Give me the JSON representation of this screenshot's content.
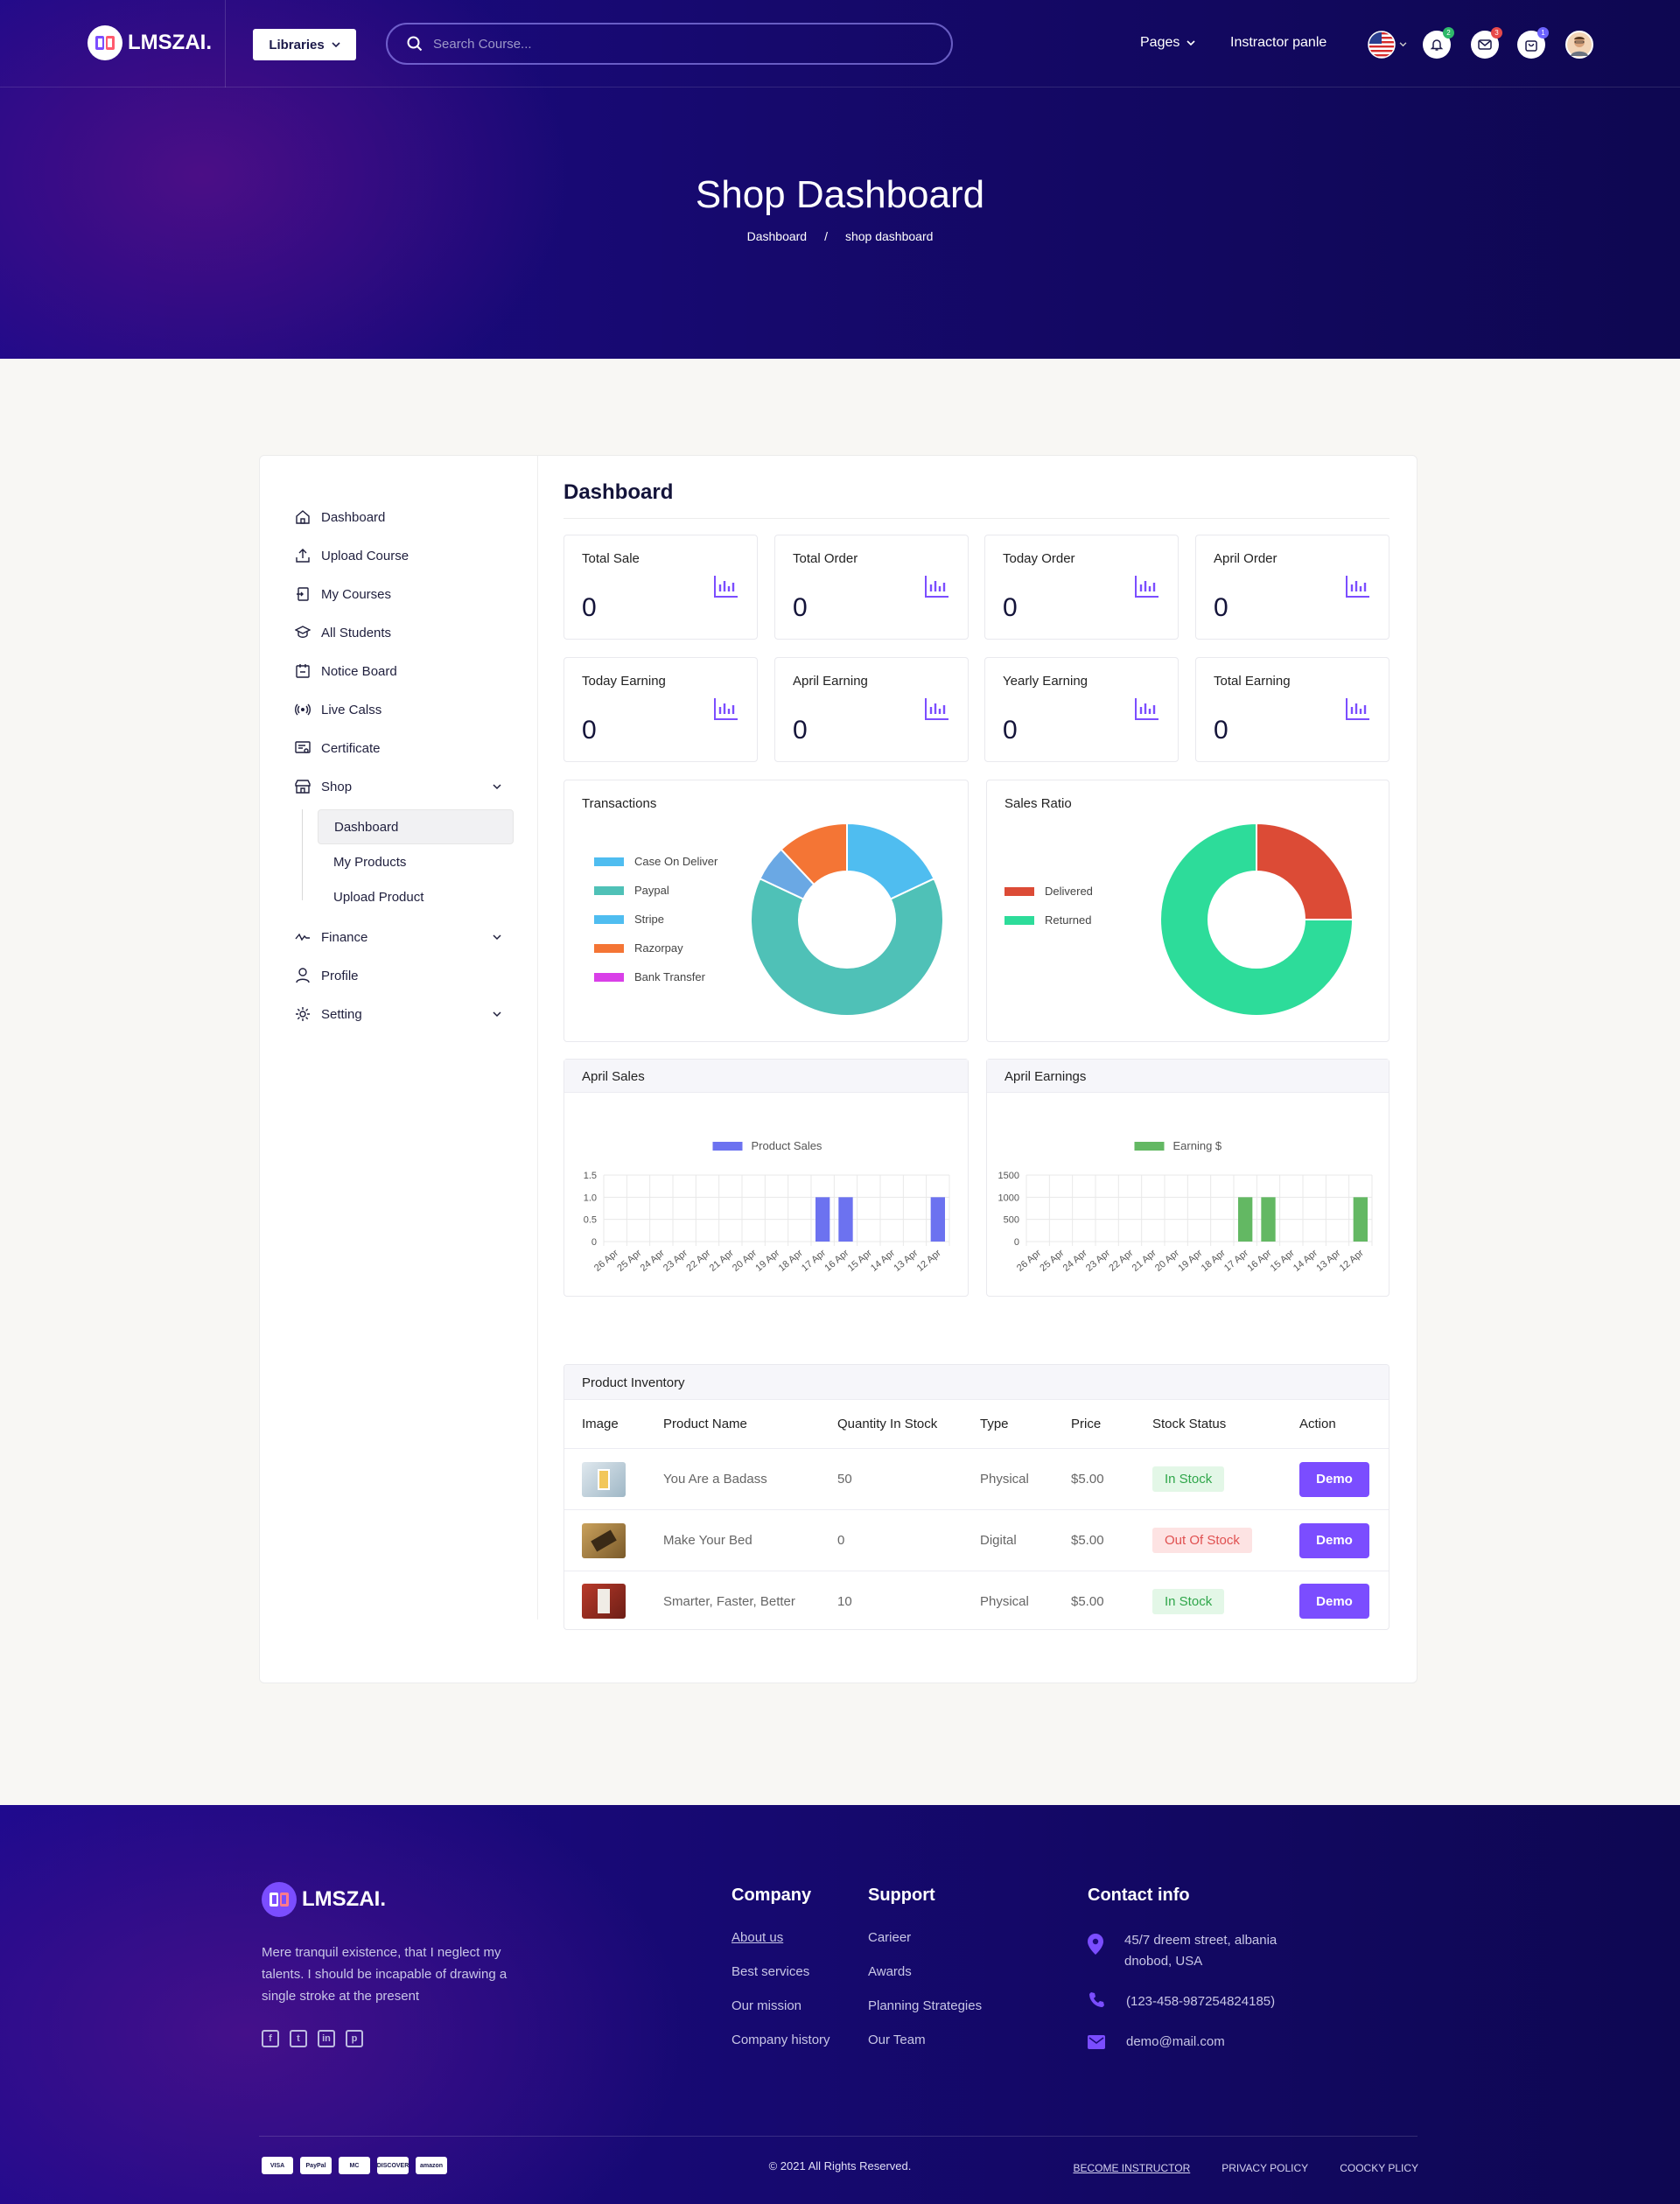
{
  "nav": {
    "logo_text": "LMSZAI.",
    "libraries_label": "Libraries",
    "search_placeholder": "Search Course...",
    "pages_label": "Pages",
    "instructor_label": "Instractor panle",
    "badges": {
      "notifications": "2",
      "messages": "3",
      "cart": "1"
    }
  },
  "hero": {
    "title": "Shop Dashboard",
    "breadcrumb": [
      "Dashboard",
      "/",
      "shop dashboard"
    ]
  },
  "sidebar": {
    "items": [
      {
        "label": "Dashboard",
        "icon": "home-icon"
      },
      {
        "label": "Upload Course",
        "icon": "upload-icon"
      },
      {
        "label": "My Courses",
        "icon": "courses-icon"
      },
      {
        "label": "All Students",
        "icon": "students-icon"
      },
      {
        "label": "Notice Board",
        "icon": "notice-icon"
      },
      {
        "label": "Live Calss",
        "icon": "live-icon"
      },
      {
        "label": "Certificate",
        "icon": "certificate-icon"
      },
      {
        "label": "Shop",
        "icon": "shop-icon"
      },
      {
        "label": "Finance",
        "icon": "finance-icon"
      },
      {
        "label": "Profile",
        "icon": "profile-icon"
      },
      {
        "label": "Setting",
        "icon": "setting-icon"
      }
    ],
    "shop_sub": [
      "Dashboard",
      "My Products",
      "Upload Product"
    ]
  },
  "dashboard": {
    "title": "Dashboard",
    "stats": [
      {
        "label": "Total Sale",
        "value": "0"
      },
      {
        "label": "Total Order",
        "value": "0"
      },
      {
        "label": "Today Order",
        "value": "0"
      },
      {
        "label": "April Order",
        "value": "0"
      },
      {
        "label": "Today Earning",
        "value": "0"
      },
      {
        "label": "April Earning",
        "value": "0"
      },
      {
        "label": "Yearly Earning",
        "value": "0"
      },
      {
        "label": "Total Earning",
        "value": "0"
      }
    ]
  },
  "chart_data": [
    {
      "type": "pie",
      "title": "Transactions",
      "donut": true,
      "legend": "left",
      "labels": [
        "Case On Deliver",
        "Paypal",
        "Stripe",
        "Razorpay",
        "Bank Transfer"
      ],
      "values": [
        18,
        64,
        6,
        12,
        0
      ],
      "colors": [
        "#4fbdf0",
        "#4fc1b7",
        "#6aa8e4",
        "#f47535",
        "#d93fe8"
      ]
    },
    {
      "type": "pie",
      "title": "Sales Ratio",
      "donut": true,
      "legend": "left",
      "labels": [
        "Delivered",
        "Returned"
      ],
      "values": [
        25,
        75
      ],
      "colors": [
        "#dc4b36",
        "#2ddc9a"
      ]
    },
    {
      "type": "bar",
      "title": "April Sales",
      "categories": [
        "26 Apr",
        "25 Apr",
        "24 Apr",
        "23 Apr",
        "22 Apr",
        "21 Apr",
        "20 Apr",
        "19 Apr",
        "18 Apr",
        "17 Apr",
        "16 Apr",
        "15 Apr",
        "14 Apr",
        "13 Apr",
        "12 Apr"
      ],
      "series": [
        {
          "name": "Product Sales",
          "values": [
            0,
            0,
            0,
            0,
            0,
            0,
            0,
            0,
            0,
            1,
            1,
            0,
            0,
            0,
            1
          ],
          "color": "#6c72f0"
        }
      ],
      "yticks": [
        "0",
        "0.5",
        "1.0",
        "1.5"
      ],
      "ylim": [
        0,
        1.5
      ],
      "legend": "top",
      "grid": true
    },
    {
      "type": "bar",
      "title": "April Earnings",
      "categories": [
        "26 Apr",
        "25 Apr",
        "24 Apr",
        "23 Apr",
        "22 Apr",
        "21 Apr",
        "20 Apr",
        "19 Apr",
        "18 Apr",
        "17 Apr",
        "16 Apr",
        "15 Apr",
        "14 Apr",
        "13 Apr",
        "12 Apr"
      ],
      "series": [
        {
          "name": "Earning $",
          "values": [
            0,
            0,
            0,
            0,
            0,
            0,
            0,
            0,
            0,
            1000,
            1000,
            0,
            0,
            0,
            1000
          ],
          "color": "#63b863"
        }
      ],
      "yticks": [
        "0",
        "500",
        "1000",
        "1500"
      ],
      "ylim": [
        0,
        1500
      ],
      "legend": "top",
      "grid": true
    }
  ],
  "inventory": {
    "title": "Product Inventory",
    "columns": [
      "Image",
      "Product Name",
      "Quantity In Stock",
      "Type",
      "Price",
      "Stock Status",
      "Action"
    ],
    "rows": [
      {
        "name": "You Are a Badass",
        "qty": "50",
        "type": "Physical",
        "price": "$5.00",
        "status": "In Stock",
        "action": "Demo"
      },
      {
        "name": "Make Your Bed",
        "qty": "0",
        "type": "Digital",
        "price": "$5.00",
        "status": "Out Of Stock",
        "action": "Demo"
      },
      {
        "name": "Smarter, Faster, Better",
        "qty": "10",
        "type": "Physical",
        "price": "$5.00",
        "status": "In Stock",
        "action": "Demo"
      }
    ]
  },
  "footer": {
    "logo_text": "LMSZAI.",
    "description": "Mere tranquil existence, that I neglect my talents. I should be incapable of drawing a single stroke at the present",
    "company_title": "Company",
    "company_links": [
      "About us",
      "Best services",
      "Our mission",
      "Company history"
    ],
    "support_title": "Support",
    "support_links": [
      "Carieer",
      "Awards",
      "Planning Strategies",
      "Our Team"
    ],
    "contact_title": "Contact info",
    "address": "45/7 dreem street, albania dnobod, USA",
    "phone": "(123-458-987254824185)",
    "email": "demo@mail.com",
    "payments": [
      "VISA",
      "PayPal",
      "MC",
      "DISCOVER",
      "amazon"
    ],
    "copyright": "© 2021  All Rights Reserved.",
    "bottom_links": [
      "BECOME INSTRUCTOR",
      "PRIVACY POLICY",
      "COOCKY PLICY"
    ]
  }
}
